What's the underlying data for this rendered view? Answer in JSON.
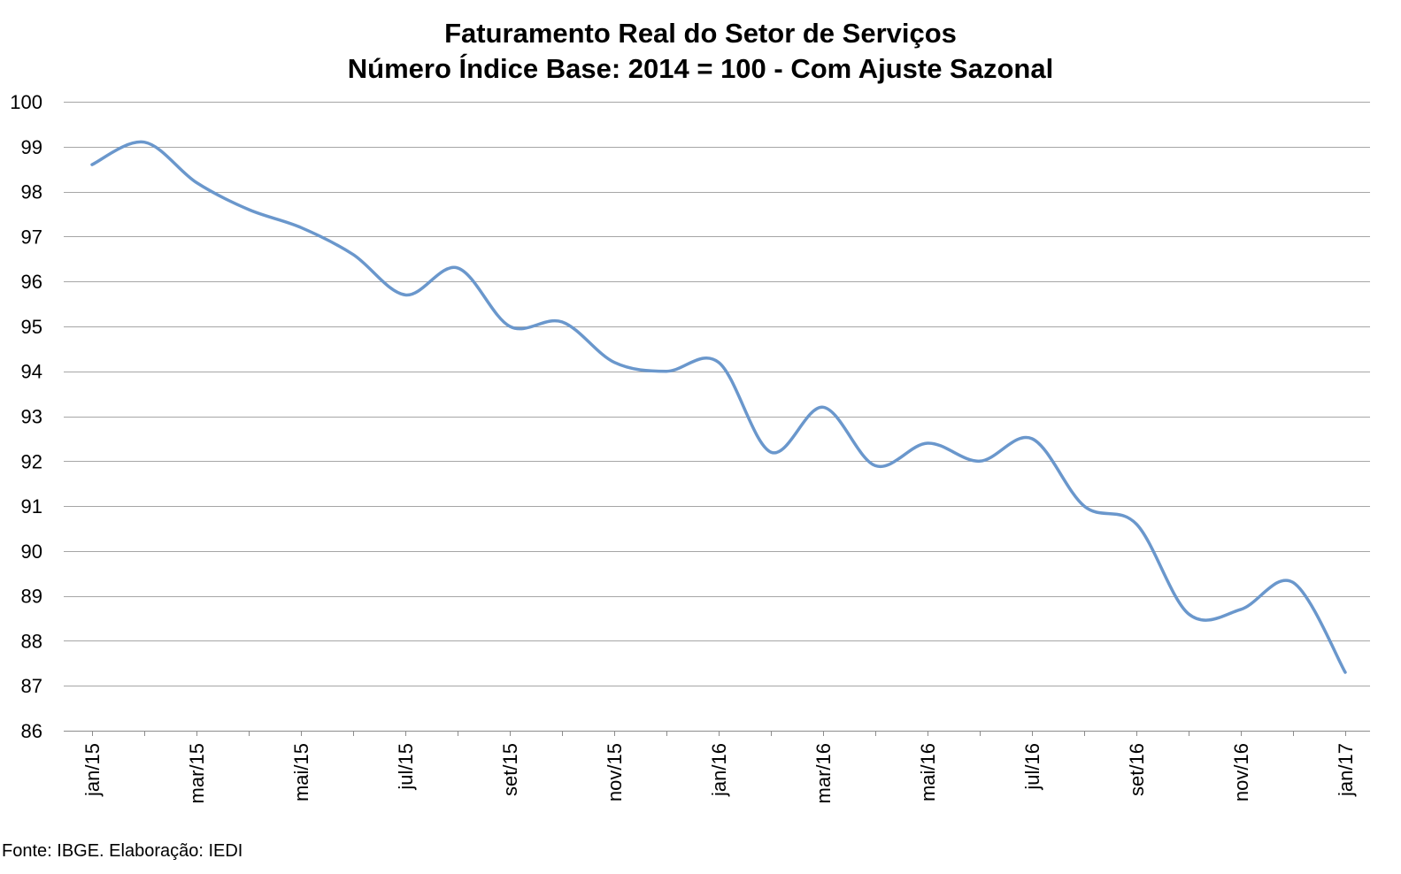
{
  "chart_data": {
    "type": "line",
    "title": "Faturamento Real do Setor de Serviços",
    "subtitle": "Número Índice Base: 2014 = 100 - Com Ajuste Sazonal",
    "xlabel": "",
    "ylabel": "",
    "ylim": [
      86,
      100
    ],
    "yticks": [
      86,
      87,
      88,
      89,
      90,
      91,
      92,
      93,
      94,
      95,
      96,
      97,
      98,
      99,
      100
    ],
    "grid": true,
    "legend": "none",
    "line_color": "#6a97cc",
    "x": [
      "jan/15",
      "fev/15",
      "mar/15",
      "abr/15",
      "mai/15",
      "jun/15",
      "jul/15",
      "ago/15",
      "set/15",
      "out/15",
      "nov/15",
      "dez/15",
      "jan/16",
      "fev/16",
      "mar/16",
      "abr/16",
      "mai/16",
      "jun/16",
      "jul/16",
      "ago/16",
      "set/16",
      "out/16",
      "nov/16",
      "dez/16",
      "jan/17"
    ],
    "x_tick_labels": [
      "jan/15",
      "",
      "mar/15",
      "",
      "mai/15",
      "",
      "jul/15",
      "",
      "set/15",
      "",
      "nov/15",
      "",
      "jan/16",
      "",
      "mar/16",
      "",
      "mai/16",
      "",
      "jul/16",
      "",
      "set/16",
      "",
      "nov/16",
      "",
      "jan/17"
    ],
    "series": [
      {
        "values": [
          98.6,
          99.1,
          98.2,
          97.6,
          97.2,
          96.6,
          95.7,
          96.3,
          95.0,
          95.1,
          94.2,
          94.0,
          94.2,
          92.2,
          93.2,
          91.9,
          92.4,
          92.0,
          92.5,
          91.0,
          90.6,
          88.6,
          88.7,
          89.3,
          87.3
        ]
      }
    ]
  },
  "source_note": "Fonte: IBGE. Elaboração: IEDI"
}
